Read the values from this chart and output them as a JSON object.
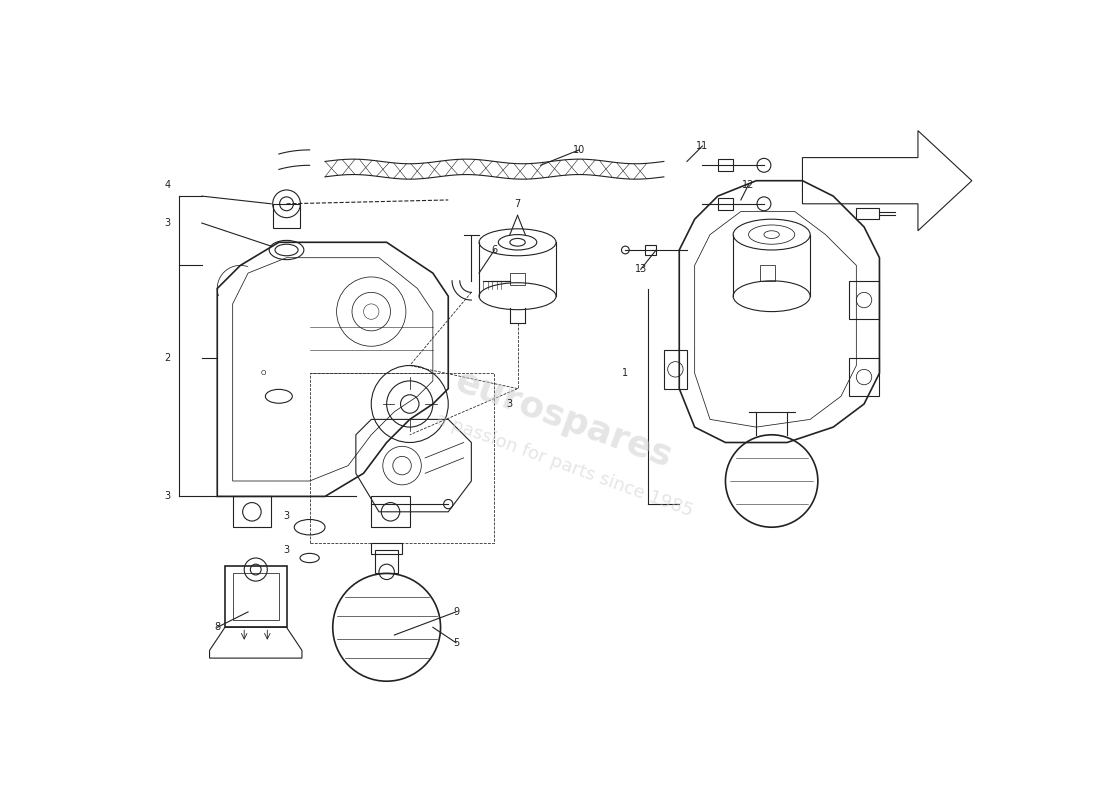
{
  "bg_color": "#ffffff",
  "line_color": "#222222",
  "label_color": "#222222",
  "fig_width": 11.0,
  "fig_height": 8.0,
  "dpi": 100,
  "watermark1": "eurospares",
  "watermark2": "a passion for parts since 1985"
}
